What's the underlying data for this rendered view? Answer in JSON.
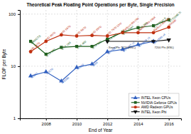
{
  "chart_data": {
    "type": "line",
    "title": "Theoretical Peak Floating Point Operations per Byte, Single Precision",
    "x_label": "End of Year",
    "y_label": "FLOP per Byte",
    "log": "y",
    "grid": true,
    "legend": "lower right",
    "xlim": [
      2006.3,
      2016.8
    ],
    "ylim": [
      1,
      120
    ],
    "xticks": [
      2008,
      2010,
      2012,
      2014,
      2016
    ],
    "yticks": [
      1,
      10,
      100
    ],
    "series": [
      {
        "name": "INTEL Xeon CPUs",
        "color": "#3060c0",
        "marker": "triangle-up",
        "x": [
          2007,
          2008,
          2009,
          2010,
          2011,
          2012,
          2013,
          2014,
          2015
        ],
        "values": [
          6.5,
          7.8,
          5.2,
          9.5,
          11.0,
          19.0,
          21.0,
          26.0,
          30.0
        ],
        "annotations": [
          {
            "text": "X5482",
            "x": 2007,
            "y": 6.5
          },
          {
            "text": "X5570",
            "x": 2008,
            "y": 7.8
          },
          {
            "text": "W5580",
            "x": 2009,
            "y": 5.2
          },
          {
            "text": "X5680",
            "x": 2010,
            "y": 9.5
          },
          {
            "text": "3600",
            "x": 2011,
            "y": 11.0
          },
          {
            "text": "E5-2680",
            "x": 2012,
            "y": 19.0
          },
          {
            "text": "E5-2687 v2",
            "x": 2013,
            "y": 21.0
          },
          {
            "text": "E5-2699 v3",
            "x": 2014,
            "y": 26.0
          },
          {
            "text": "E5-2699 v4",
            "x": 2015,
            "y": 30.0
          }
        ]
      },
      {
        "name": "NVIDIA Geforce GPUs",
        "color": "#206020",
        "marker": "square",
        "x": [
          2007,
          2008,
          2009,
          2010,
          2011,
          2012,
          2013,
          2014,
          2015,
          2016
        ],
        "values": [
          30.0,
          17.0,
          23.0,
          24.0,
          24.0,
          33.0,
          45.0,
          55.0,
          60.0,
          78.0
        ],
        "annotations": [
          {
            "text": "8800GTS",
            "x": 2007,
            "y": 30.0
          },
          {
            "text": "GTX 280",
            "x": 2008,
            "y": 17.0
          },
          {
            "text": "GTX 285",
            "x": 2009,
            "y": 23.0
          },
          {
            "text": "GTX 460",
            "x": 2010,
            "y": 24.0
          },
          {
            "text": "GTX 560",
            "x": 2011,
            "y": 24.0
          },
          {
            "text": "GTX 680",
            "x": 2012,
            "y": 33.0
          },
          {
            "text": "GTX Titan",
            "x": 2013,
            "y": 45.0
          },
          {
            "text": "GTX 980",
            "x": 2014,
            "y": 55.0
          },
          {
            "text": "GTX Titan X",
            "x": 2015,
            "y": 60.0
          },
          {
            "text": "GTX1080 Ti",
            "x": 2016,
            "y": 78.0
          }
        ]
      },
      {
        "name": "AMD Radeon GPUs",
        "color": "#c03010",
        "marker": "circle",
        "x": [
          2007,
          2008,
          2009,
          2010,
          2011,
          2012,
          2013,
          2014,
          2015,
          2016
        ],
        "values": [
          19.0,
          30.0,
          40.0,
          38.0,
          39.0,
          38.0,
          44.0,
          44.0,
          44.0,
          56.0
        ],
        "annotations": [
          {
            "text": "HD 3870",
            "x": 2007,
            "y": 19.0
          },
          {
            "text": "HD 4870",
            "x": 2008,
            "y": 30.0
          },
          {
            "text": "HD 5870",
            "x": 2009,
            "y": 40.0
          },
          {
            "text": "HD 6870",
            "x": 2010,
            "y": 38.0
          },
          {
            "text": "HD 6970",
            "x": 2011,
            "y": 39.0
          },
          {
            "text": "HD 7970 GHz",
            "x": 2012,
            "y": 38.0
          },
          {
            "text": "Radeon R9-290",
            "x": 2013,
            "y": 44.0
          },
          {
            "text": "Radeon R9-290X",
            "x": 2014,
            "y": 44.0
          },
          {
            "text": "Radeon R9-390",
            "x": 2015,
            "y": 44.0
          },
          {
            "text": "RX480",
            "x": 2016,
            "y": 56.0
          }
        ]
      },
      {
        "name": "INTEL Xeon Phi",
        "color": "#111111",
        "marker": "triangle-down",
        "x": [
          2012,
          2015,
          2016
        ],
        "values": [
          30.0,
          30.0,
          32.0
        ],
        "annotations": [
          {
            "text": "Xeon Phi 7120 (KNC)",
            "x": 2012,
            "y": 30.0
          },
          {
            "text": "7200 Phi (KNL)",
            "x": 2015,
            "y": 30.0
          }
        ]
      }
    ]
  }
}
